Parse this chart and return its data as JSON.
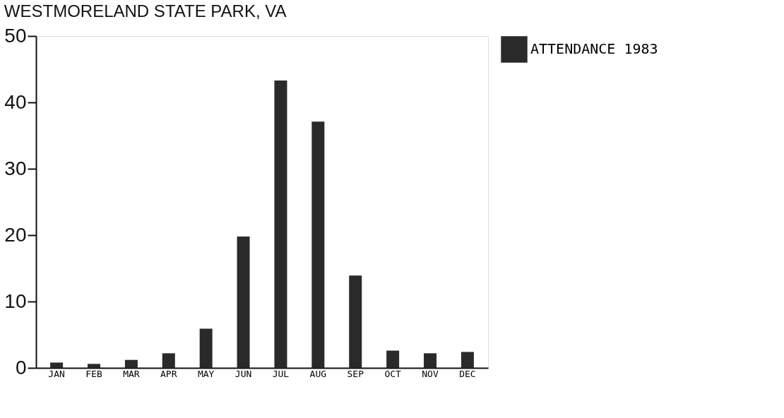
{
  "chart_data": {
    "type": "bar",
    "title": "WESTMORELAND STATE PARK, VA",
    "categories": [
      "JAN",
      "FEB",
      "MAR",
      "APR",
      "MAY",
      "JUN",
      "JUL",
      "AUG",
      "SEP",
      "OCT",
      "NOV",
      "DEC"
    ],
    "series": [
      {
        "name": "ATTENDANCE 1983",
        "color": "#2a2a2a",
        "values": [
          0.8,
          0.6,
          1.2,
          2.2,
          5.9,
          19.8,
          43.3,
          37.1,
          13.9,
          2.6,
          2.2,
          2.4
        ]
      }
    ],
    "ylim": [
      0,
      50
    ],
    "yticks": [
      0,
      10,
      20,
      30,
      40,
      50
    ],
    "grid": false,
    "legend": "right"
  }
}
